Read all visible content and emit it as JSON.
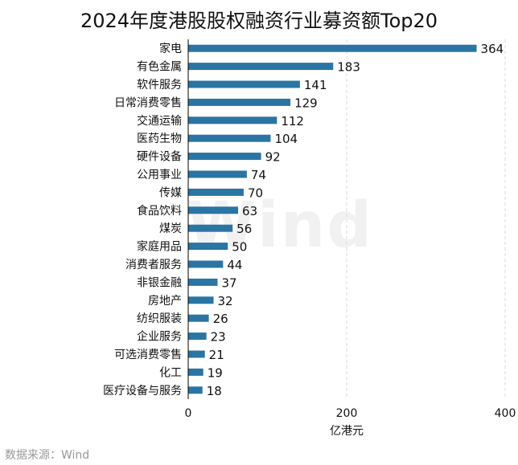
{
  "title": "2024年度港股股权融资行业募资额Top20",
  "source": "数据来源：Wind",
  "watermark": "Wind",
  "colors": {
    "bar": "#2a75a3",
    "grid": "#d9d9d9",
    "axis": "#000000"
  },
  "chart_data": {
    "type": "bar",
    "orientation": "horizontal",
    "title": "2024年度港股股权融资行业募资额Top20",
    "xlabel": "亿港元",
    "ylabel": "",
    "xlim": [
      0,
      400
    ],
    "xticks": [
      0,
      200,
      400
    ],
    "grid": "x-dashed",
    "categories": [
      "家电",
      "有色金属",
      "软件服务",
      "日常消费零售",
      "交通运输",
      "医药生物",
      "硬件设备",
      "公用事业",
      "传媒",
      "食品饮料",
      "煤炭",
      "家庭用品",
      "消费者服务",
      "非银金融",
      "房地产",
      "纺织服装",
      "企业服务",
      "可选消费零售",
      "化工",
      "医疗设备与服务"
    ],
    "values": [
      364,
      183,
      141,
      129,
      112,
      104,
      92,
      74,
      70,
      63,
      56,
      50,
      44,
      37,
      32,
      26,
      23,
      21,
      19,
      18
    ]
  }
}
